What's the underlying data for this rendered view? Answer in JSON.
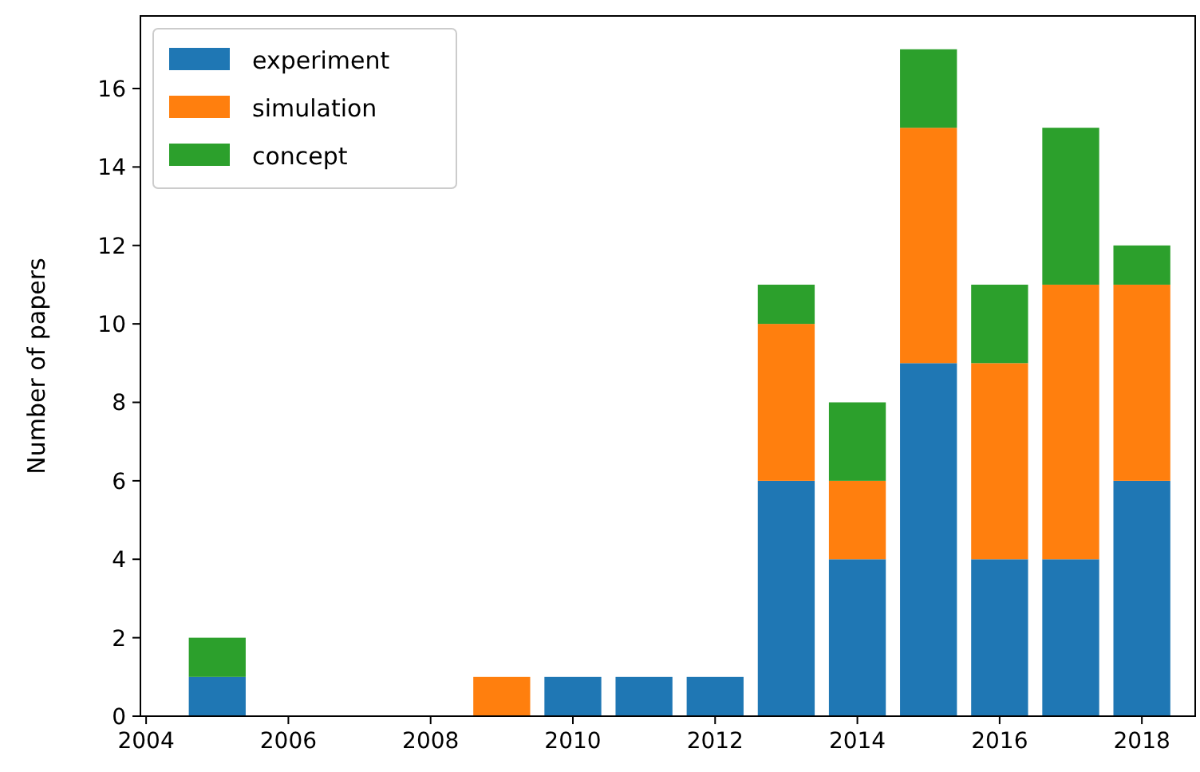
{
  "chart_data": {
    "type": "bar",
    "stacked": true,
    "ylabel": "Number of papers",
    "x": [
      2005,
      2009,
      2010,
      2011,
      2012,
      2013,
      2014,
      2015,
      2016,
      2017,
      2018
    ],
    "series": [
      {
        "name": "experiment",
        "color": "#1f77b4",
        "values": [
          1,
          0,
          1,
          1,
          1,
          6,
          4,
          9,
          4,
          4,
          6
        ]
      },
      {
        "name": "simulation",
        "color": "#ff7f0e",
        "values": [
          0,
          1,
          0,
          0,
          0,
          4,
          2,
          6,
          5,
          7,
          5
        ]
      },
      {
        "name": "concept",
        "color": "#2ca02c",
        "values": [
          1,
          0,
          0,
          0,
          0,
          1,
          2,
          2,
          2,
          4,
          1
        ]
      }
    ],
    "xlim": [
      2003.92,
      2018.75
    ],
    "xticks": [
      2004,
      2006,
      2008,
      2010,
      2012,
      2014,
      2016,
      2018
    ],
    "ylim": [
      0,
      17.85
    ],
    "yticks": [
      0,
      2,
      4,
      6,
      8,
      10,
      12,
      14,
      16
    ],
    "grid": false,
    "legend": "top left"
  }
}
